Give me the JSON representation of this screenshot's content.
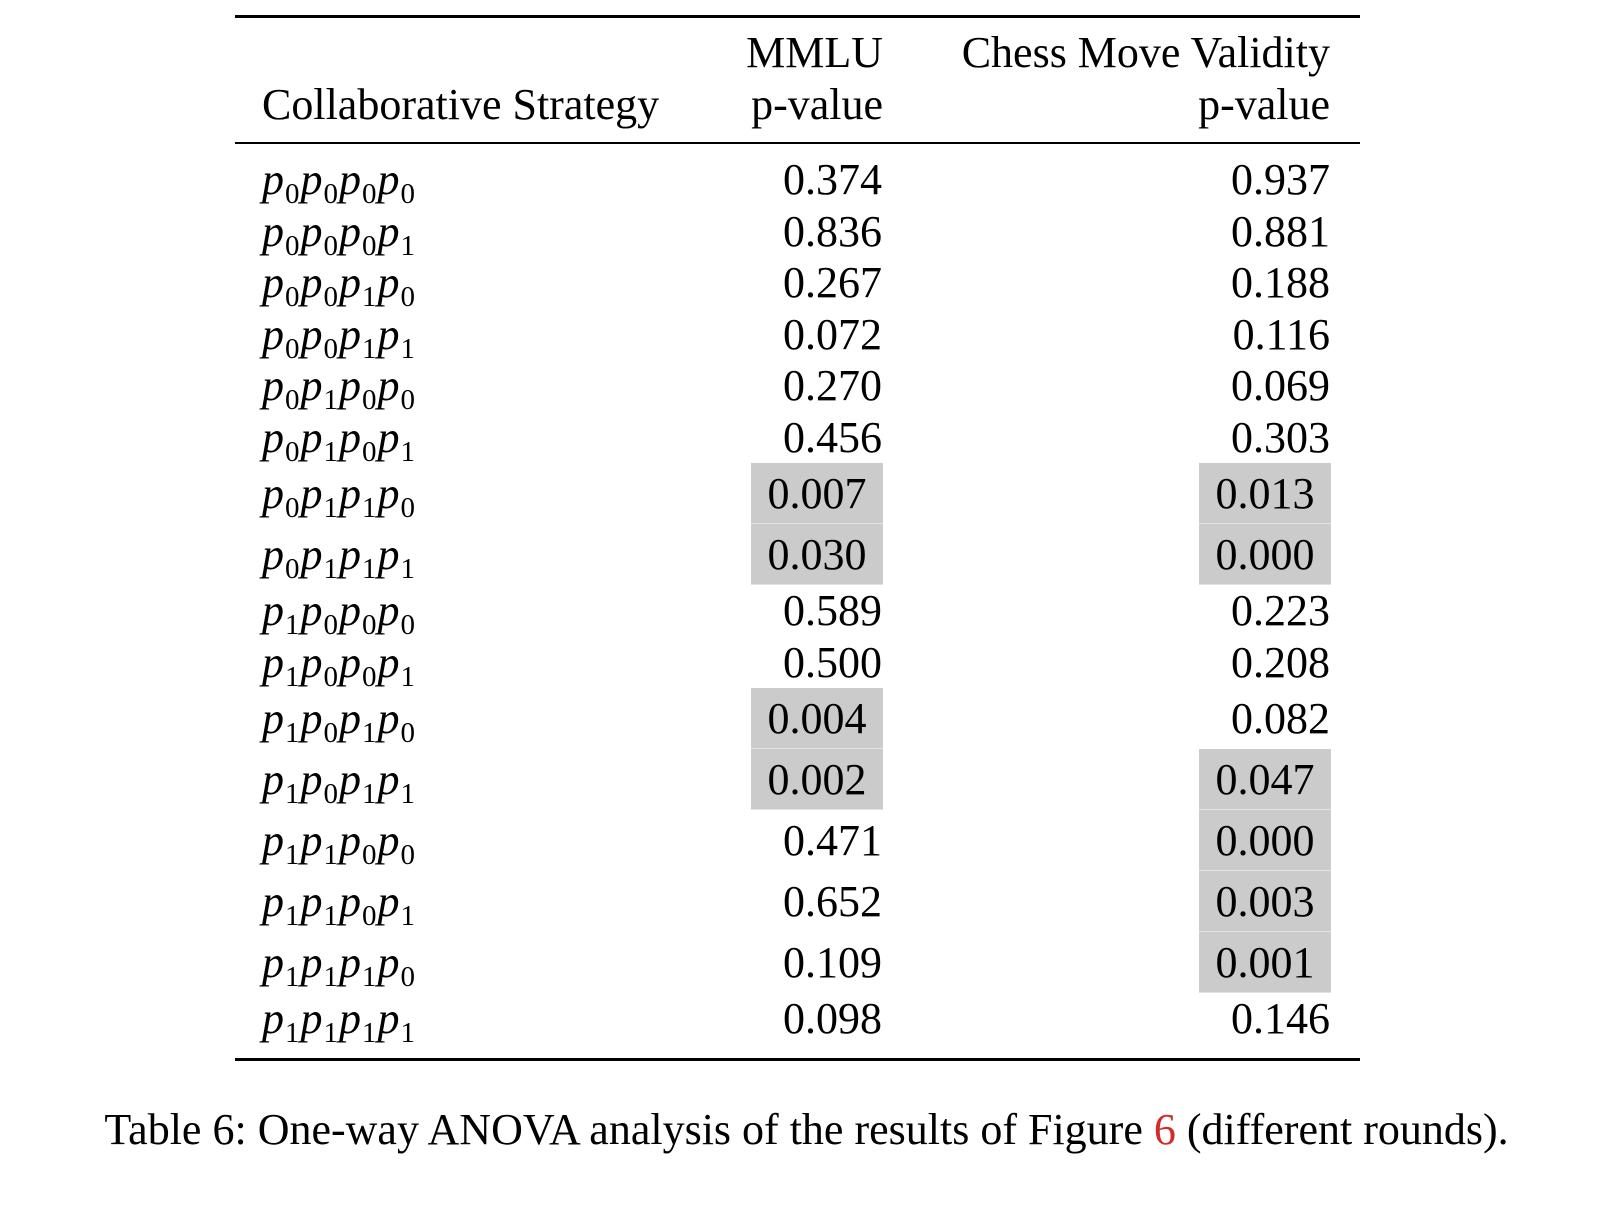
{
  "table": {
    "headers": {
      "strategy": "Collaborative Strategy",
      "mmlu_line1": "MMLU",
      "mmlu_line2": "p-value",
      "chess_line1": "Chess Move Validity",
      "chess_line2": "p-value"
    },
    "shade_color": "#cbcbcb",
    "rows": [
      {
        "strategy": [
          "0",
          "0",
          "0",
          "0"
        ],
        "mmlu": "0.374",
        "chess": "0.937",
        "mmlu_sig": false,
        "chess_sig": false
      },
      {
        "strategy": [
          "0",
          "0",
          "0",
          "1"
        ],
        "mmlu": "0.836",
        "chess": "0.881",
        "mmlu_sig": false,
        "chess_sig": false
      },
      {
        "strategy": [
          "0",
          "0",
          "1",
          "0"
        ],
        "mmlu": "0.267",
        "chess": "0.188",
        "mmlu_sig": false,
        "chess_sig": false
      },
      {
        "strategy": [
          "0",
          "0",
          "1",
          "1"
        ],
        "mmlu": "0.072",
        "chess": "0.116",
        "mmlu_sig": false,
        "chess_sig": false
      },
      {
        "strategy": [
          "0",
          "1",
          "0",
          "0"
        ],
        "mmlu": "0.270",
        "chess": "0.069",
        "mmlu_sig": false,
        "chess_sig": false
      },
      {
        "strategy": [
          "0",
          "1",
          "0",
          "1"
        ],
        "mmlu": "0.456",
        "chess": "0.303",
        "mmlu_sig": false,
        "chess_sig": false
      },
      {
        "strategy": [
          "0",
          "1",
          "1",
          "0"
        ],
        "mmlu": "0.007",
        "chess": "0.013",
        "mmlu_sig": true,
        "chess_sig": true
      },
      {
        "strategy": [
          "0",
          "1",
          "1",
          "1"
        ],
        "mmlu": "0.030",
        "chess": "0.000",
        "mmlu_sig": true,
        "chess_sig": true
      },
      {
        "strategy": [
          "1",
          "0",
          "0",
          "0"
        ],
        "mmlu": "0.589",
        "chess": "0.223",
        "mmlu_sig": false,
        "chess_sig": false
      },
      {
        "strategy": [
          "1",
          "0",
          "0",
          "1"
        ],
        "mmlu": "0.500",
        "chess": "0.208",
        "mmlu_sig": false,
        "chess_sig": false
      },
      {
        "strategy": [
          "1",
          "0",
          "1",
          "0"
        ],
        "mmlu": "0.004",
        "chess": "0.082",
        "mmlu_sig": true,
        "chess_sig": false
      },
      {
        "strategy": [
          "1",
          "0",
          "1",
          "1"
        ],
        "mmlu": "0.002",
        "chess": "0.047",
        "mmlu_sig": true,
        "chess_sig": true
      },
      {
        "strategy": [
          "1",
          "1",
          "0",
          "0"
        ],
        "mmlu": "0.471",
        "chess": "0.000",
        "mmlu_sig": false,
        "chess_sig": true
      },
      {
        "strategy": [
          "1",
          "1",
          "0",
          "1"
        ],
        "mmlu": "0.652",
        "chess": "0.003",
        "mmlu_sig": false,
        "chess_sig": true
      },
      {
        "strategy": [
          "1",
          "1",
          "1",
          "0"
        ],
        "mmlu": "0.109",
        "chess": "0.001",
        "mmlu_sig": false,
        "chess_sig": true
      },
      {
        "strategy": [
          "1",
          "1",
          "1",
          "1"
        ],
        "mmlu": "0.098",
        "chess": "0.146",
        "mmlu_sig": false,
        "chess_sig": false
      }
    ]
  },
  "caption": {
    "prefix": "Table 6: One-way ANOVA analysis of the results of Figure ",
    "figure_ref": "6",
    "suffix": " (different rounds).",
    "ref_color": "#d42a2a"
  }
}
